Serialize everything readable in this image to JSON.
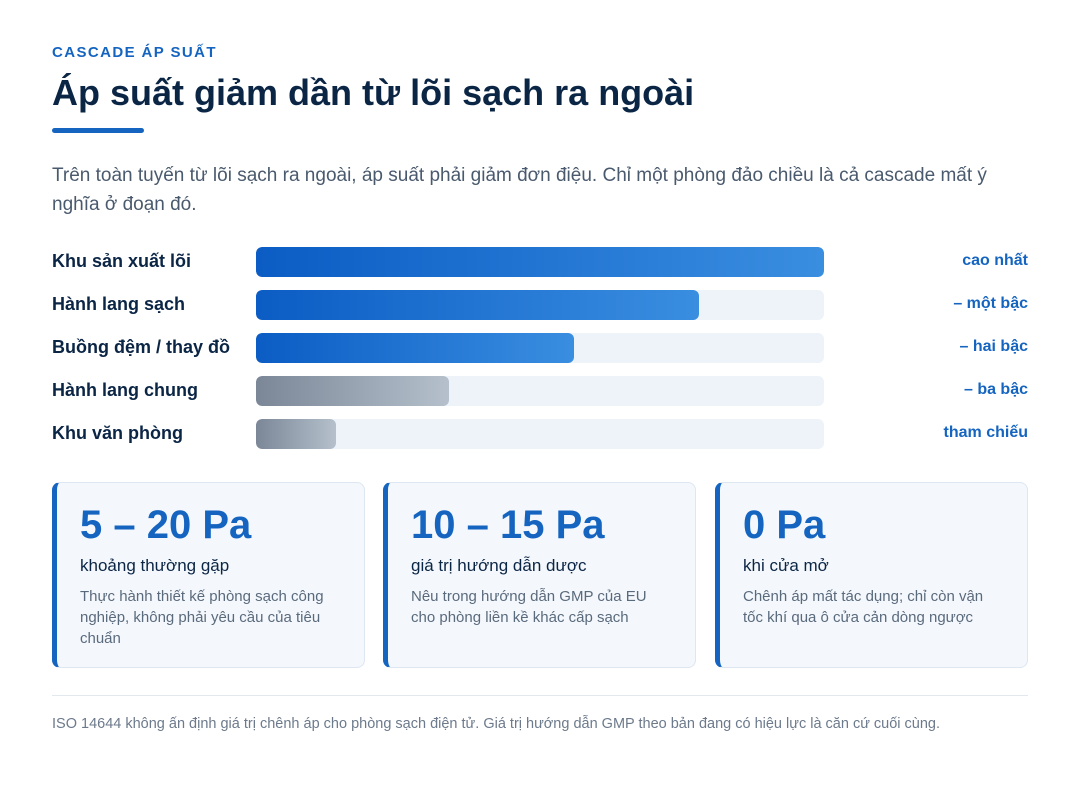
{
  "header": {
    "eyebrow": "CASCADE ÁP SUẤT",
    "title": "Áp suất giảm dần từ lõi sạch ra ngoài",
    "intro": "Trên toàn tuyến từ lõi sạch ra ngoài, áp suất phải giảm đơn điệu. Chỉ một phòng đảo chiều là cả cascade mất ý nghĩa ở đoạn đó."
  },
  "colors": {
    "accent": "#1565c0",
    "title": "#0b2545",
    "bar_blue_start": "#0b5cc4",
    "bar_blue_end": "#3a8ee0",
    "bar_grey_start": "#7b8797",
    "bar_grey_end": "#b5c0cc",
    "track": "#eef3f9"
  },
  "cascade": {
    "rows": [
      {
        "label": "Khu sản xuất lõi",
        "tag": "cao nhất",
        "level": 1.0,
        "tone": "blue"
      },
      {
        "label": "Hành lang sạch",
        "tag": "– một bậc",
        "level": 0.78,
        "tone": "blue"
      },
      {
        "label": "Buồng đệm / thay đồ",
        "tag": "– hai bậc",
        "level": 0.56,
        "tone": "blue"
      },
      {
        "label": "Hành lang chung",
        "tag": "– ba bậc",
        "level": 0.34,
        "tone": "grey"
      },
      {
        "label": "Khu văn phòng",
        "tag": "tham chiếu",
        "level": 0.14,
        "tone": "grey"
      }
    ]
  },
  "cards": [
    {
      "value": "5 – 20 Pa",
      "subtitle": "khoảng thường gặp",
      "description": "Thực hành thiết kế phòng sạch công nghiệp, không phải yêu cầu của tiêu chuẩn"
    },
    {
      "value": "10 – 15 Pa",
      "subtitle": "giá trị hướng dẫn dược",
      "description": "Nêu trong hướng dẫn GMP của EU cho phòng liền kề khác cấp sạch"
    },
    {
      "value": "0 Pa",
      "subtitle": "khi cửa mở",
      "description": "Chênh áp mất tác dụng; chỉ còn vận tốc khí qua ô cửa cản dòng ngược"
    }
  ],
  "footnote": "ISO 14644 không ấn định giá trị chênh áp cho phòng sạch điện tử. Giá trị hướng dẫn GMP theo bản đang có hiệu lực là căn cứ cuối cùng."
}
